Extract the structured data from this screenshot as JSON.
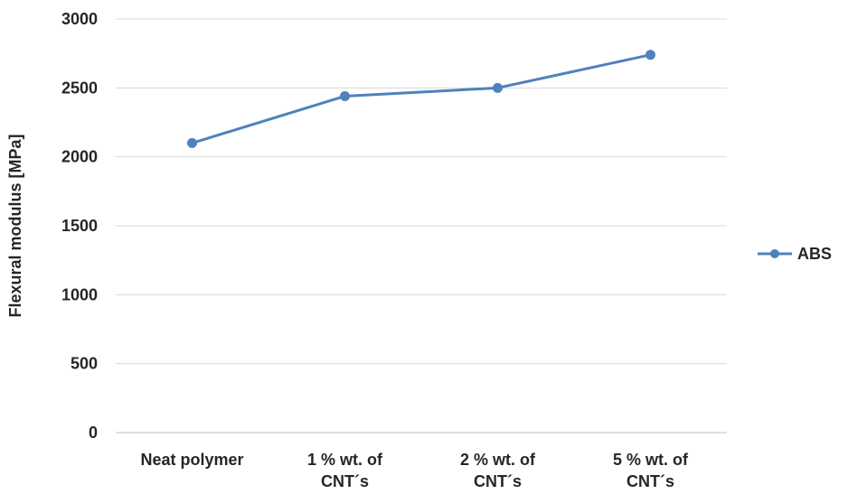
{
  "chart_data": {
    "type": "line",
    "title": "",
    "xlabel": "",
    "ylabel": "Flexural modulus [MPa]",
    "ylim": [
      0,
      3000
    ],
    "yticks": [
      0,
      500,
      1000,
      1500,
      2000,
      2500,
      3000
    ],
    "categories": [
      [
        "Neat polymer"
      ],
      [
        "1 % wt. of",
        "CNT´s"
      ],
      [
        "2 % wt. of",
        "CNT´s"
      ],
      [
        "5 % wt. of",
        "CNT´s"
      ]
    ],
    "series": [
      {
        "name": "ABS",
        "values": [
          2100,
          2440,
          2500,
          2740
        ],
        "color": "#4f81bd"
      }
    ],
    "grid": true,
    "legend": "right",
    "marker": "circle"
  }
}
